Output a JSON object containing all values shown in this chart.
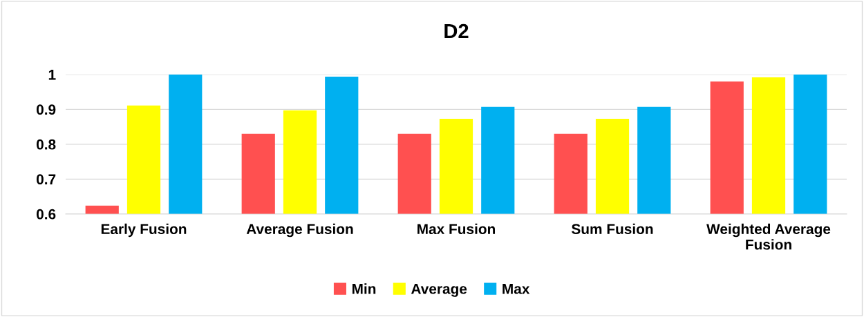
{
  "chart_data": {
    "type": "bar",
    "title": "D2",
    "categories": [
      "Early Fusion",
      "Average Fusion",
      "Max Fusion",
      "Sum Fusion",
      "Weighted Average\nFusion"
    ],
    "series": [
      {
        "name": "Min",
        "color": "#ff5050",
        "values": [
          0.624,
          0.83,
          0.83,
          0.83,
          0.98
        ]
      },
      {
        "name": "Average",
        "color": "#ffff00",
        "values": [
          0.911,
          0.897,
          0.873,
          0.873,
          0.992
        ]
      },
      {
        "name": "Max",
        "color": "#00b0f0",
        "values": [
          1.0,
          0.994,
          0.907,
          0.907,
          1.0
        ]
      }
    ],
    "ylim": [
      0.6,
      1.0
    ],
    "yticks": [
      0.6,
      0.7,
      0.8,
      0.9,
      1
    ],
    "grid": "y",
    "legend": "bottom"
  }
}
